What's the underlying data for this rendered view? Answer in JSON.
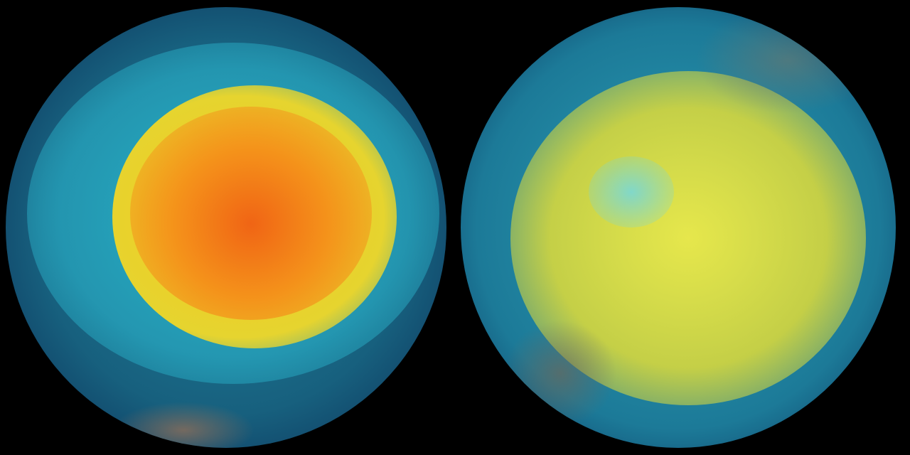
{
  "globes": [
    {
      "id": "left",
      "palette": {
        "core": "#f05a14",
        "mid": "#f7b21a",
        "ring": "#e8e03a",
        "outer": "#25a9c0",
        "edge": "#0f3e63"
      }
    },
    {
      "id": "right",
      "palette": {
        "core": "#f2ee4a",
        "mid": "#d8e23a",
        "spot": "#7fd6d0",
        "outer": "#27a6bf",
        "edge": "#0f3e63"
      }
    }
  ]
}
